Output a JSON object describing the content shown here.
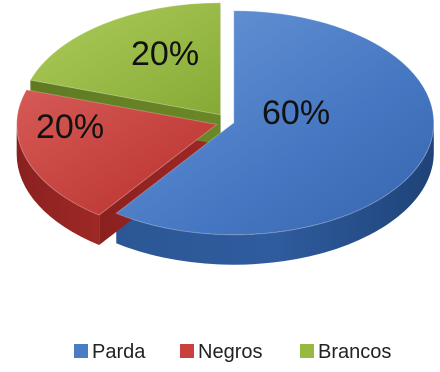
{
  "chart_data": {
    "type": "pie",
    "categories": [
      "Parda",
      "Negros",
      "Brancos"
    ],
    "values": [
      60,
      20,
      20
    ],
    "data_labels": [
      "60%",
      "20%",
      "20%"
    ],
    "colors": [
      "#4a7cc4",
      "#c9403d",
      "#97b93f"
    ],
    "title": "",
    "legend_position": "bottom-right",
    "style": "3d-exploded"
  }
}
